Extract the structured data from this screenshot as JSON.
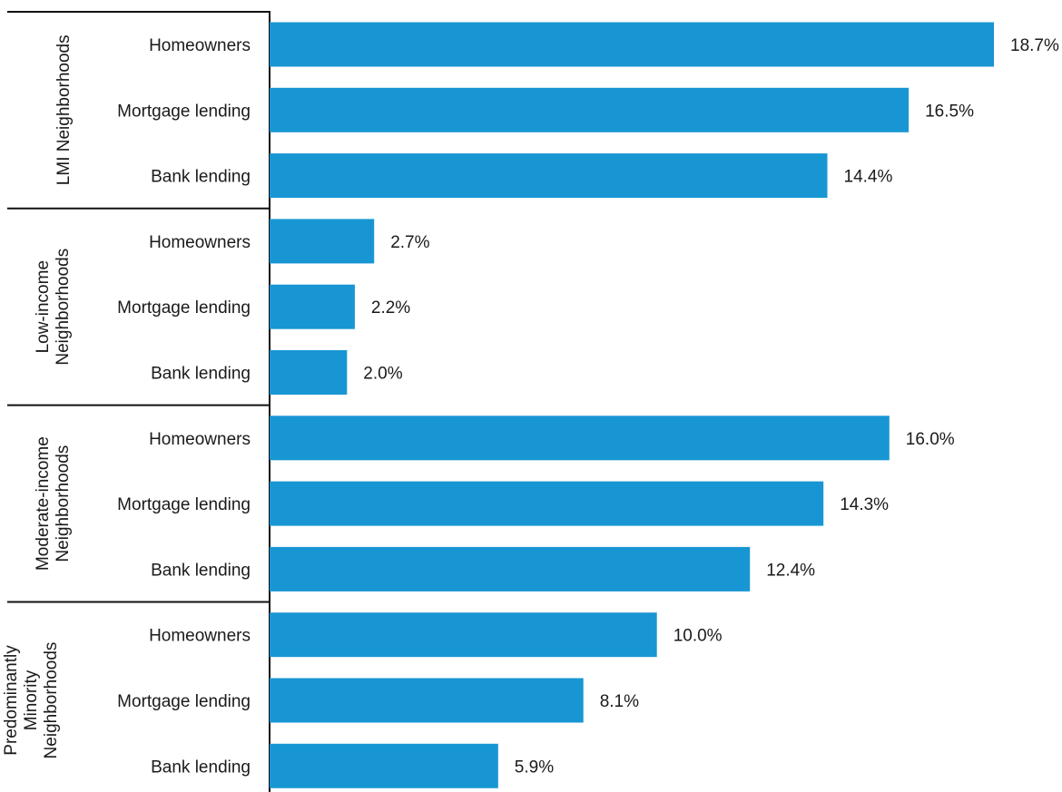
{
  "chart_data": {
    "type": "bar",
    "orientation": "horizontal",
    "bar_color": "#1896d3",
    "value_suffix": "%",
    "xlim": [
      0,
      18.7
    ],
    "grid": false,
    "legend": "none",
    "groups": [
      {
        "name_lines": [
          "LMI Neighborhoods"
        ],
        "categories": [
          "Homeowners",
          "Mortgage lending",
          "Bank lending"
        ],
        "values": [
          18.7,
          16.5,
          14.4
        ],
        "labels": [
          "18.7%",
          "16.5%",
          "14.4%"
        ]
      },
      {
        "name_lines": [
          "Low-income",
          "Neighborhoods"
        ],
        "categories": [
          "Homeowners",
          "Mortgage lending",
          "Bank lending"
        ],
        "values": [
          2.7,
          2.2,
          2.0
        ],
        "labels": [
          "2.7%",
          "2.2%",
          "2.0%"
        ]
      },
      {
        "name_lines": [
          "Moderate-income",
          "Neighborhoods"
        ],
        "categories": [
          "Homeowners",
          "Mortgage lending",
          "Bank lending"
        ],
        "values": [
          16.0,
          14.3,
          12.4
        ],
        "labels": [
          "16.0%",
          "14.3%",
          "12.4%"
        ]
      },
      {
        "name_lines": [
          "Predominantly",
          "Minority",
          "Neighborhoods"
        ],
        "categories": [
          "Homeowners",
          "Mortgage lending",
          "Bank lending"
        ],
        "values": [
          10.0,
          8.1,
          5.9
        ],
        "labels": [
          "10.0%",
          "8.1%",
          "5.9%"
        ]
      }
    ]
  }
}
